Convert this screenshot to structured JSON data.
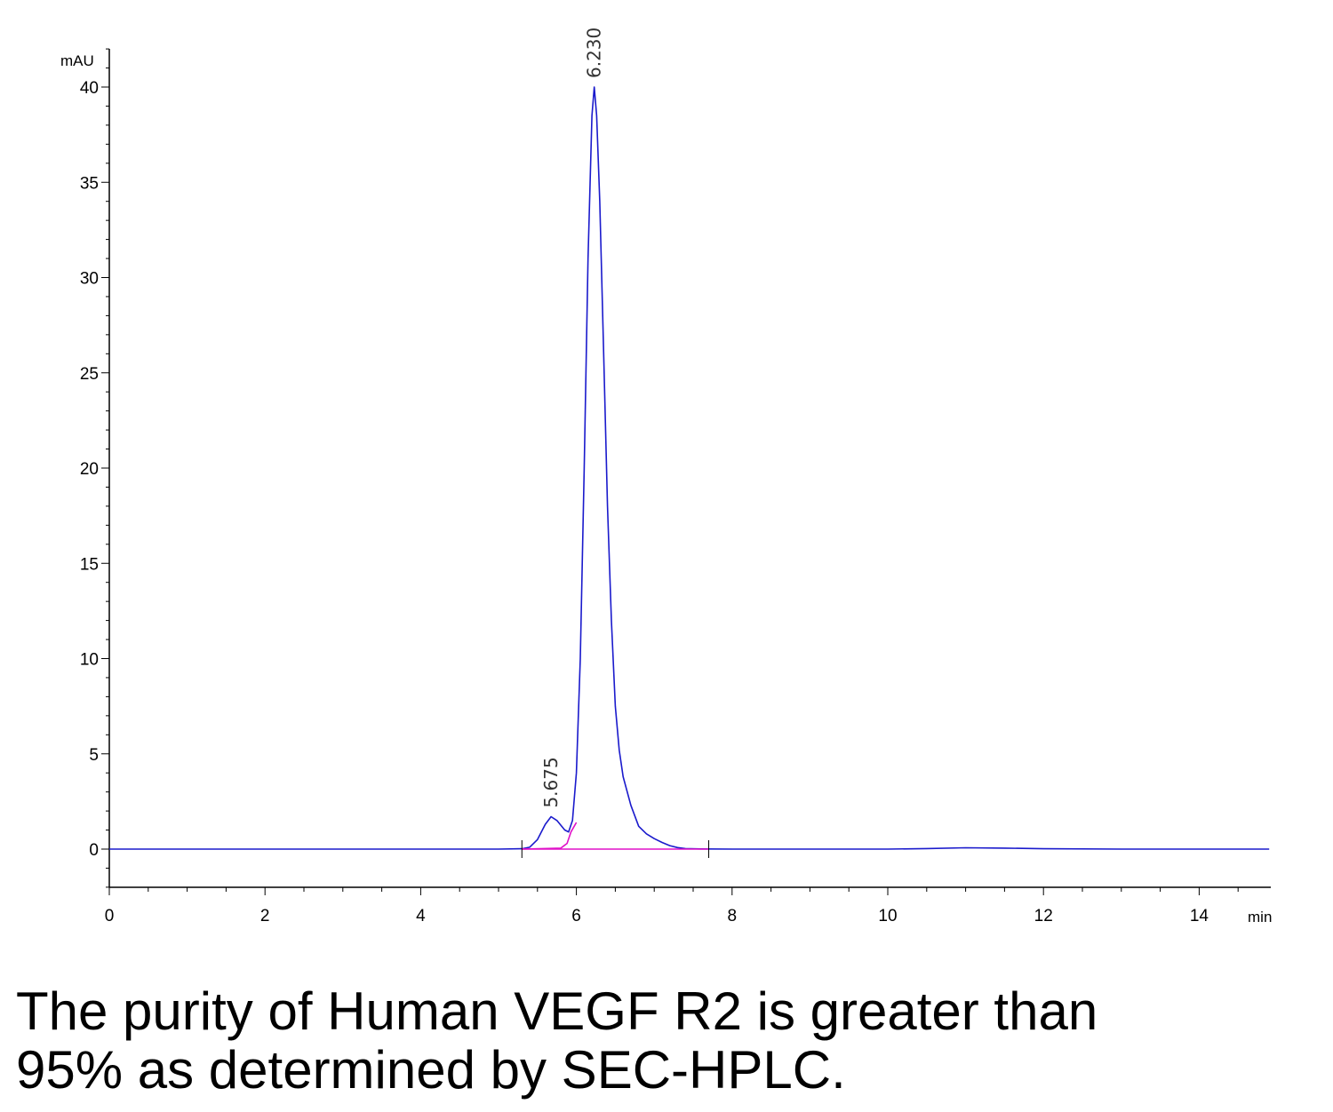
{
  "chart_data": {
    "type": "line",
    "xlabel": "min",
    "ylabel": "mAU",
    "xlim": [
      0,
      14.9
    ],
    "ylim": [
      -2,
      42
    ],
    "x_ticks": [
      0,
      2,
      4,
      6,
      8,
      10,
      12,
      14
    ],
    "y_ticks": [
      0,
      5,
      10,
      15,
      20,
      25,
      30,
      35,
      40
    ],
    "grid": false,
    "series": [
      {
        "color": "#1a1acc",
        "points": [
          [
            0,
            0
          ],
          [
            2,
            0
          ],
          [
            4,
            0
          ],
          [
            5.0,
            0
          ],
          [
            5.3,
            0.02
          ],
          [
            5.4,
            0.1
          ],
          [
            5.5,
            0.5
          ],
          [
            5.6,
            1.3
          ],
          [
            5.675,
            1.7
          ],
          [
            5.75,
            1.5
          ],
          [
            5.85,
            1.0
          ],
          [
            5.9,
            0.9
          ],
          [
            5.95,
            1.5
          ],
          [
            6.0,
            4.0
          ],
          [
            6.05,
            10.0
          ],
          [
            6.1,
            20.0
          ],
          [
            6.15,
            31.0
          ],
          [
            6.2,
            38.5
          ],
          [
            6.23,
            40.0
          ],
          [
            6.26,
            38.5
          ],
          [
            6.3,
            34.0
          ],
          [
            6.35,
            26.0
          ],
          [
            6.4,
            18.0
          ],
          [
            6.45,
            12.0
          ],
          [
            6.5,
            7.5
          ],
          [
            6.55,
            5.2
          ],
          [
            6.6,
            3.8
          ],
          [
            6.7,
            2.3
          ],
          [
            6.8,
            1.2
          ],
          [
            6.9,
            0.8
          ],
          [
            7.0,
            0.55
          ],
          [
            7.1,
            0.35
          ],
          [
            7.2,
            0.18
          ],
          [
            7.3,
            0.08
          ],
          [
            7.4,
            0.03
          ],
          [
            7.6,
            0.01
          ],
          [
            8,
            0
          ],
          [
            10,
            0
          ],
          [
            10.5,
            0.03
          ],
          [
            11.0,
            0.07
          ],
          [
            11.5,
            0.05
          ],
          [
            12,
            0.02
          ],
          [
            13,
            0
          ],
          [
            14.9,
            0
          ]
        ]
      },
      {
        "color": "#e010c8",
        "points": [
          [
            5.3,
            0
          ],
          [
            5.8,
            0.05
          ],
          [
            5.88,
            0.3
          ],
          [
            5.93,
            0.9
          ],
          [
            6.0,
            1.4
          ]
        ]
      },
      {
        "color": "#e010c8",
        "points": [
          [
            5.3,
            0
          ],
          [
            7.7,
            0
          ]
        ]
      }
    ],
    "peaks": [
      {
        "x": 5.675,
        "y": 1.7,
        "label": "5.675"
      },
      {
        "x": 6.23,
        "y": 40.0,
        "label": "6.230"
      }
    ],
    "integration_marks": [
      5.3,
      7.7
    ]
  },
  "caption": {
    "line1": "The purity of Human VEGF R2 is greater than",
    "line2": "95% as determined by SEC-HPLC."
  }
}
